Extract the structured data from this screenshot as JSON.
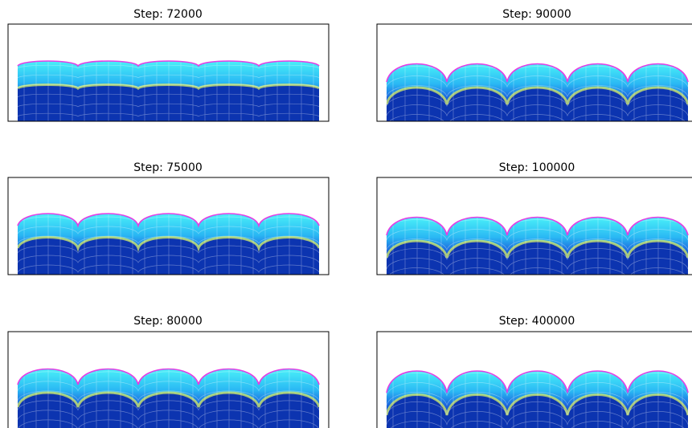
{
  "panels": [
    {
      "title": "Step: 72000"
    },
    {
      "title": "Step: 90000"
    },
    {
      "title": "Step: 75000"
    },
    {
      "title": "Step: 100000"
    },
    {
      "title": "Step: 80000"
    },
    {
      "title": "Step: 400000"
    }
  ]
}
